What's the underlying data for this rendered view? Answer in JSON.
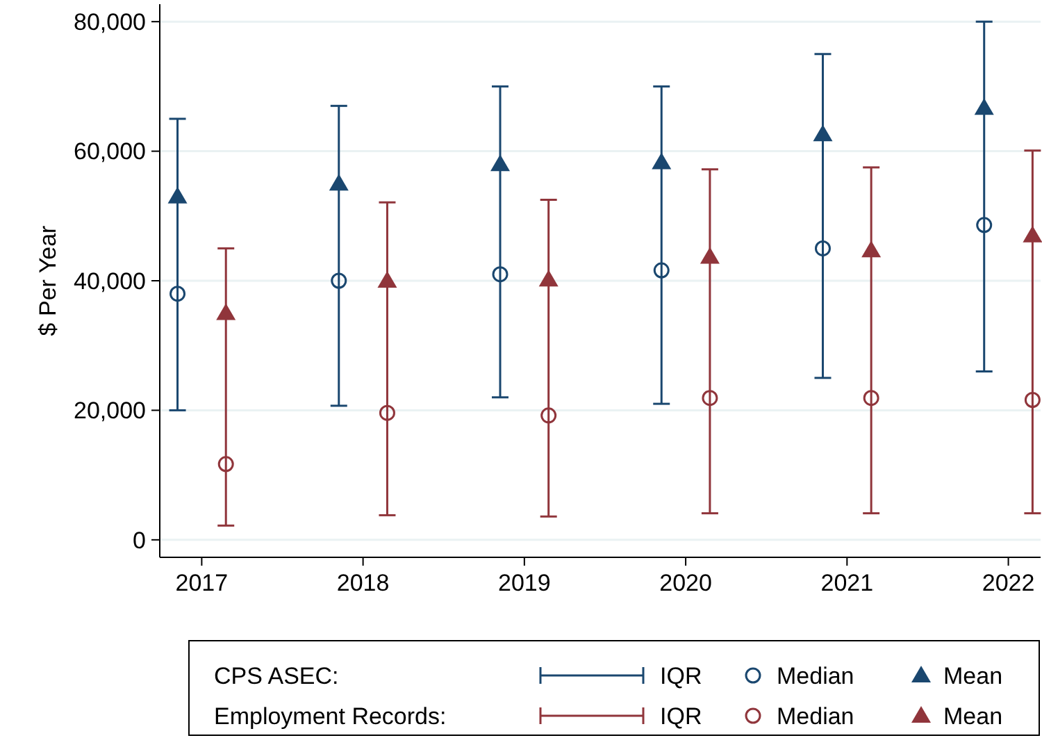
{
  "chart_data": {
    "type": "scatter",
    "ylabel": "$ Per Year",
    "xlim": [
      2016.74,
      2022.2
    ],
    "xticks": [
      2017,
      2018,
      2019,
      2020,
      2021,
      2022
    ],
    "ylim": [
      -2700,
      82700
    ],
    "yticks": [
      {
        "value": 0,
        "label": "0"
      },
      {
        "value": 20000,
        "label": "20,000"
      },
      {
        "value": 40000,
        "label": "40,000"
      },
      {
        "value": 60000,
        "label": "60,000"
      },
      {
        "value": 80000,
        "label": "80,000"
      }
    ],
    "grid": "y",
    "legend": "bottom",
    "annotations": [
      "CPS ASEC:",
      "Employment Records:",
      "IQR",
      "IQR"
    ],
    "series": [
      {
        "name": "Median",
        "color": "#1a476f",
        "marker": "circle",
        "x": [
          2016.85,
          2017.85,
          2018.85,
          2019.85,
          2020.85,
          2021.85
        ],
        "values": [
          38000,
          40000,
          41000,
          41600,
          45000,
          48600
        ],
        "errors": [
          [
            20000,
            65000
          ],
          [
            20700,
            67000
          ],
          [
            22000,
            70000
          ],
          [
            21000,
            70000
          ],
          [
            25000,
            75000
          ],
          [
            26000,
            80000
          ]
        ]
      },
      {
        "name": "Mean",
        "color": "#1a476f",
        "marker": "triangle",
        "x": [
          2016.85,
          2017.85,
          2018.85,
          2019.85,
          2020.85,
          2021.85
        ],
        "values": [
          53000,
          55000,
          58000,
          58300,
          62600,
          66700
        ]
      },
      {
        "name": "Median",
        "color": "#90353b",
        "marker": "circle",
        "x": [
          2017.15,
          2018.15,
          2019.15,
          2020.15,
          2021.15,
          2022.15
        ],
        "values": [
          11700,
          19600,
          19200,
          21900,
          21900,
          21600
        ],
        "errors": [
          [
            2200,
            45000
          ],
          [
            3800,
            52100
          ],
          [
            3600,
            52500
          ],
          [
            4100,
            57200
          ],
          [
            4100,
            57500
          ],
          [
            4100,
            60100
          ]
        ]
      },
      {
        "name": "Mean",
        "color": "#90353b",
        "marker": "triangle",
        "x": [
          2017.15,
          2018.15,
          2019.15,
          2020.15,
          2021.15,
          2022.15
        ],
        "values": [
          35000,
          40000,
          40200,
          43700,
          44700,
          47000
        ]
      }
    ]
  }
}
